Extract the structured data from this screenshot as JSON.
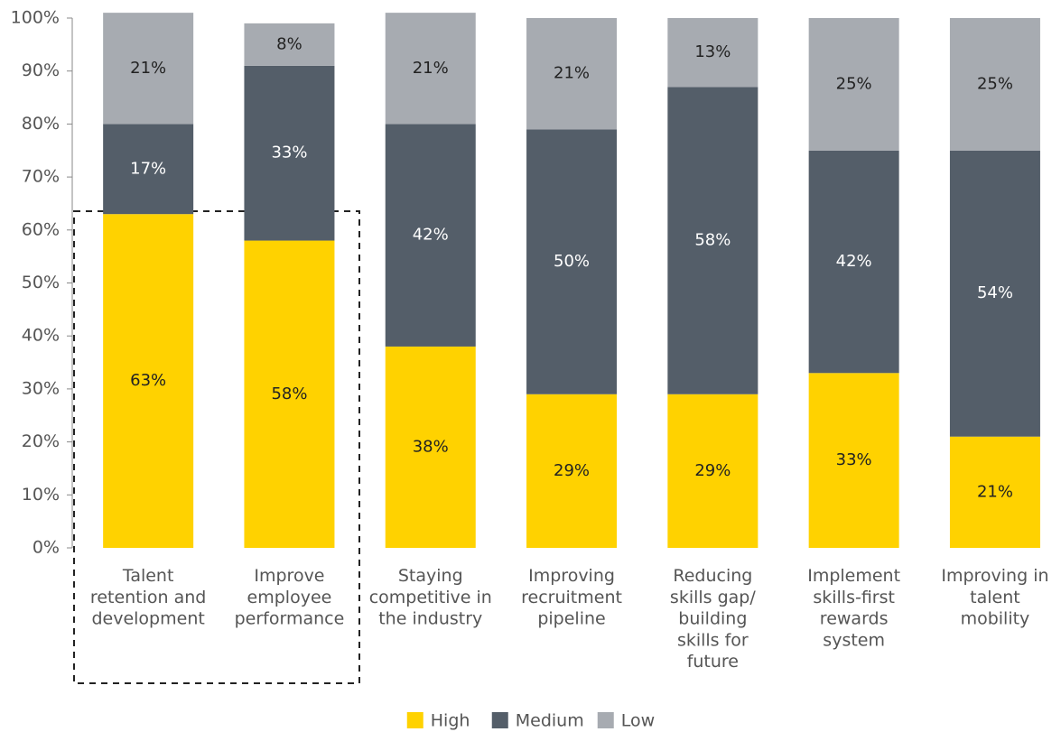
{
  "chart_data": {
    "type": "stacked_bar",
    "categories": [
      "Talent\nretention and\ndevelopment",
      "Improve\nemployee\nperformance",
      "Staying\ncompetitive in\nthe industry",
      "Improving\nrecruitment\npipeline",
      "Reducing\nskills gap/\nbuilding\nskills for\nfuture",
      "Implement\nskills-first\nrewards\nsystem",
      "Improving in\ntalent\nmobility"
    ],
    "series": [
      {
        "name": "High",
        "color": "#ffd200",
        "values": [
          63,
          58,
          38,
          29,
          29,
          33,
          21
        ],
        "value_labels": [
          "63%",
          "58%",
          "38%",
          "29%",
          "29%",
          "33%",
          "21%"
        ]
      },
      {
        "name": "Medium",
        "color": "#545e69",
        "values": [
          17,
          33,
          42,
          50,
          58,
          42,
          54
        ],
        "value_labels": [
          "17%",
          "33%",
          "42%",
          "50%",
          "58%",
          "42%",
          "54%"
        ]
      },
      {
        "name": "Low",
        "color": "#a7abb1",
        "values": [
          21,
          8,
          21,
          21,
          13,
          25,
          25
        ],
        "value_labels": [
          "21%",
          "8%",
          "21%",
          "21%",
          "13%",
          "25%",
          "25%"
        ]
      }
    ],
    "ylim": [
      0,
      100
    ],
    "yticks": [
      {
        "value": 0,
        "label": "0%"
      },
      {
        "value": 10,
        "label": "10%"
      },
      {
        "value": 20,
        "label": "20%"
      },
      {
        "value": 30,
        "label": "30%"
      },
      {
        "value": 40,
        "label": "40%"
      },
      {
        "value": 50,
        "label": "50%"
      },
      {
        "value": 60,
        "label": "60%"
      },
      {
        "value": 70,
        "label": "70%"
      },
      {
        "value": 80,
        "label": "80%"
      },
      {
        "value": 90,
        "label": "90%"
      },
      {
        "value": 100,
        "label": "100%"
      }
    ],
    "legend": "bottom"
  }
}
